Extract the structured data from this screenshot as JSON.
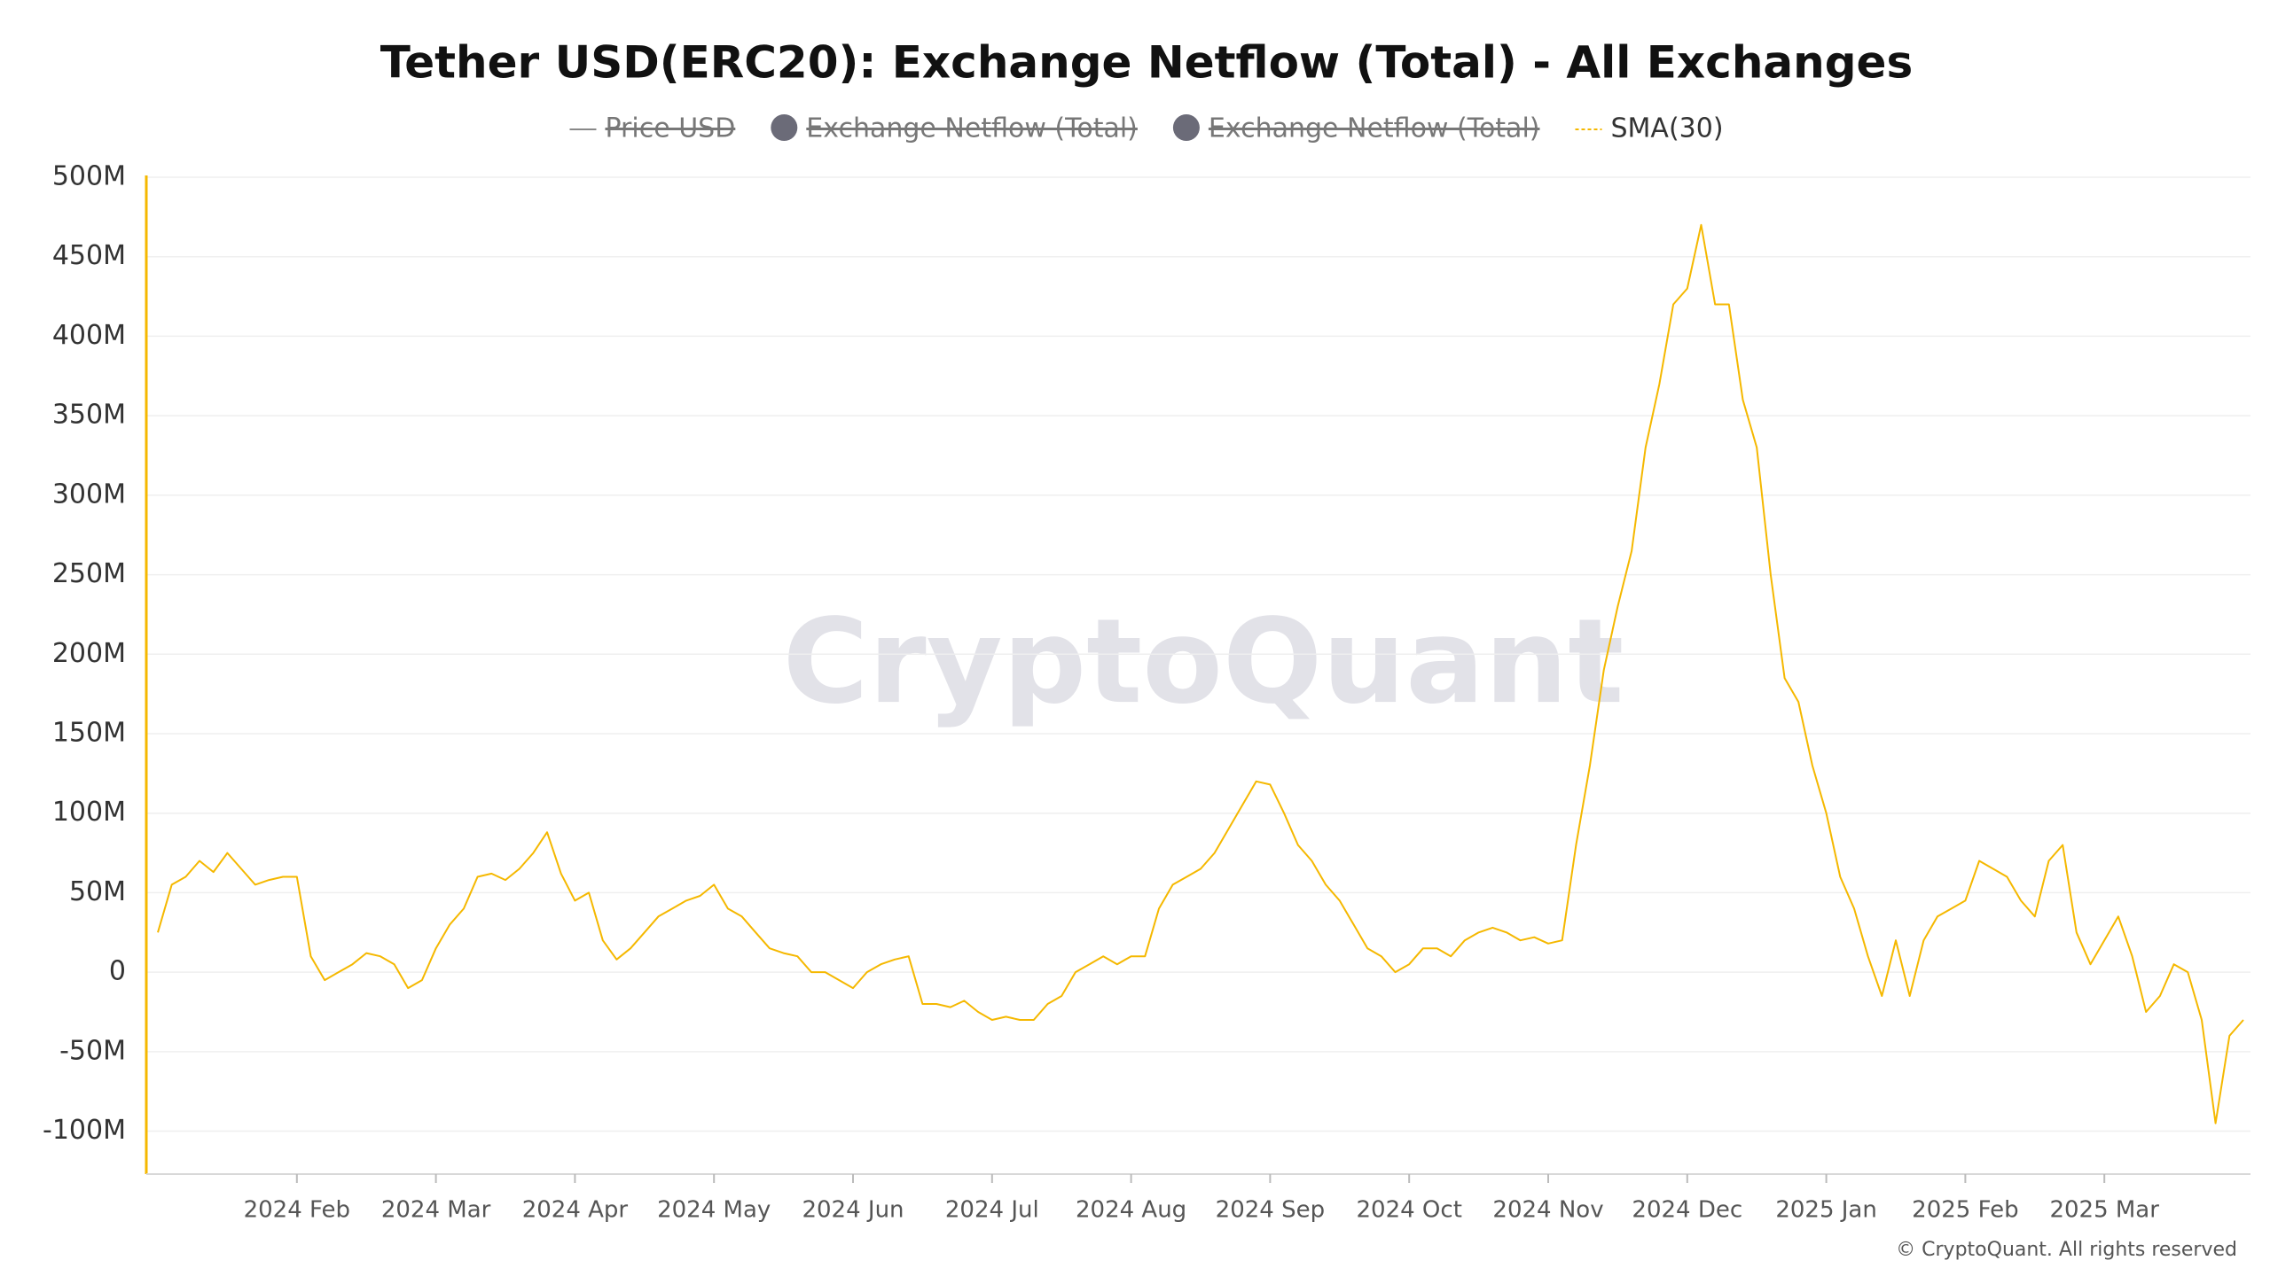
{
  "chart_data": {
    "type": "line",
    "title": "Tether USD(ERC20): Exchange Netflow (Total) - All Exchanges",
    "watermark": "CryptoQuant",
    "copyright": "© CryptoQuant. All rights reserved",
    "legend": [
      {
        "name": "Price USD",
        "symbol": "line",
        "hidden": true,
        "color": "#888888"
      },
      {
        "name": "Exchange Netflow (Total)",
        "symbol": "circle",
        "hidden": true,
        "color": "#6b6b78"
      },
      {
        "name": "Exchange Netflow (Total)",
        "symbol": "circle",
        "hidden": true,
        "color": "#6b6b78"
      }
    ],
    "categories": [
      null,
      null,
      null,
      null,
      null,
      null,
      null,
      null,
      null,
      null,
      "2024 Feb",
      null,
      null,
      null,
      null,
      null,
      null,
      null,
      null,
      null,
      "2024 Mar",
      null,
      null,
      null,
      null,
      null,
      null,
      null,
      null,
      null,
      "2024 Apr",
      null,
      null,
      null,
      null,
      null,
      null,
      null,
      null,
      null,
      "2024 May",
      null,
      null,
      null,
      null,
      null,
      null,
      null,
      null,
      null,
      "2024 Jun",
      null,
      null,
      null,
      null,
      null,
      null,
      null,
      null,
      null,
      "2024 Jul",
      null,
      null,
      null,
      null,
      null,
      null,
      null,
      null,
      null,
      "2024 Aug",
      null,
      null,
      null,
      null,
      null,
      null,
      null,
      null,
      null,
      "2024 Sep",
      null,
      null,
      null,
      null,
      null,
      null,
      null,
      null,
      null,
      "2024 Oct",
      null,
      null,
      null,
      null,
      null,
      null,
      null,
      null,
      null,
      "2024 Nov",
      null,
      null,
      null,
      null,
      null,
      null,
      null,
      null,
      null,
      "2024 Dec",
      null,
      null,
      null,
      null,
      null,
      null,
      null,
      null,
      null,
      "2025 Jan",
      null,
      null,
      null,
      null,
      null,
      null,
      null,
      null,
      null,
      "2025 Feb",
      null,
      null,
      null,
      null,
      null,
      null,
      null,
      null,
      null,
      "2025 Mar",
      null,
      null,
      null,
      null,
      null,
      null,
      null,
      null,
      null,
      null
    ],
    "series": [
      {
        "name": "SMA(30)",
        "color": "#f5b800",
        "values": [
          25,
          55,
          60,
          70,
          63,
          75,
          65,
          55,
          58,
          60,
          60,
          10,
          -5,
          0,
          5,
          12,
          10,
          5,
          -10,
          -5,
          15,
          30,
          40,
          60,
          62,
          58,
          65,
          75,
          88,
          62,
          45,
          50,
          20,
          8,
          15,
          25,
          35,
          40,
          45,
          48,
          55,
          40,
          35,
          25,
          15,
          12,
          10,
          0,
          0,
          -5,
          -10,
          0,
          5,
          8,
          10,
          -20,
          -20,
          -22,
          -18,
          -25,
          -30,
          -28,
          -30,
          -30,
          -20,
          -15,
          0,
          5,
          10,
          5,
          10,
          10,
          40,
          55,
          60,
          65,
          75,
          90,
          105,
          120,
          118,
          100,
          80,
          70,
          55,
          45,
          30,
          15,
          10,
          0,
          5,
          15,
          15,
          10,
          20,
          25,
          28,
          25,
          20,
          22,
          18,
          20,
          80,
          130,
          190,
          230,
          265,
          330,
          370,
          420,
          430,
          470,
          420,
          420,
          360,
          330,
          250,
          185,
          170,
          130,
          100,
          60,
          40,
          10,
          -15,
          20,
          -15,
          20,
          35,
          40,
          45,
          70,
          65,
          60,
          45,
          35,
          70,
          80,
          25,
          5,
          20,
          35,
          10,
          -25,
          -15,
          5,
          0,
          -30,
          -95,
          -40,
          -30
        ]
      }
    ],
    "ylim": [
      -127,
      500
    ],
    "yticks": [
      {
        "value": -100,
        "label": "-100M"
      },
      {
        "value": -50,
        "label": "-50M"
      },
      0,
      {
        "value": 50,
        "label": "50M"
      },
      {
        "value": 100,
        "label": "100M"
      },
      {
        "value": 150,
        "label": "150M"
      },
      {
        "value": 200,
        "label": "200M"
      },
      {
        "value": 250,
        "label": "250M"
      },
      {
        "value": 300,
        "label": "300M"
      },
      {
        "value": 350,
        "label": "350M"
      },
      {
        "value": 400,
        "label": "400M"
      },
      {
        "value": 450,
        "label": "450M"
      },
      {
        "value": 500,
        "label": "500M"
      }
    ],
    "grid": true,
    "axis_color": "#f5b800"
  }
}
